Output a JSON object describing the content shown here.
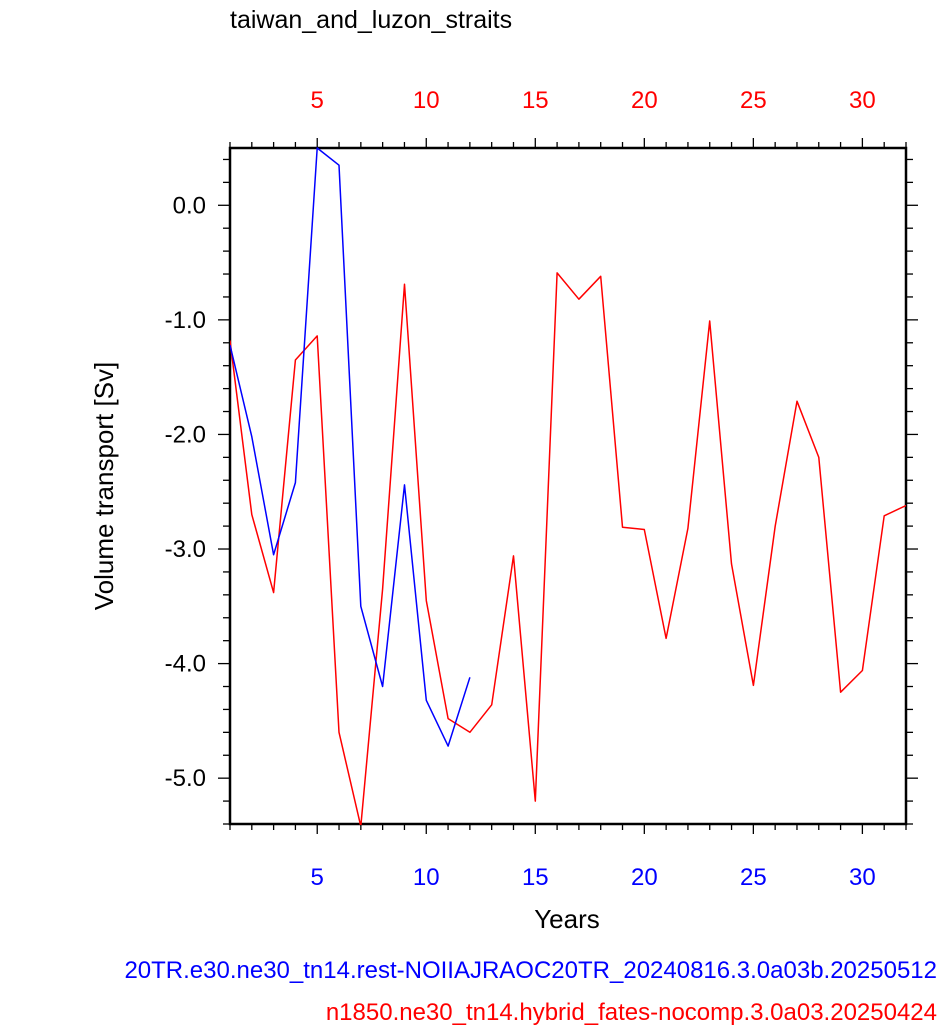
{
  "chart_data": {
    "type": "line",
    "title": "taiwan_and_luzon_straits",
    "xlabel": "Years",
    "ylabel": "Volume transport [Sv]",
    "xlim": [
      1,
      32
    ],
    "ylim": [
      -5.4,
      0.5
    ],
    "x_ticks": [
      5,
      10,
      15,
      20,
      25,
      30
    ],
    "x_tick_labels": [
      "5",
      "10",
      "15",
      "20",
      "25",
      "30"
    ],
    "y_ticks": [
      0.0,
      -1.0,
      -2.0,
      -3.0,
      -4.0,
      -5.0
    ],
    "y_tick_labels": [
      "0.0",
      "-1.0",
      "-2.0",
      "-3.0",
      "-4.0",
      "-5.0"
    ],
    "grid": false,
    "series": [
      {
        "name": "20TR.e30.ne30_tn14.rest-NOIIAJRAOC20TR_20240816.3.0a03b.20250512",
        "color": "#0000ff",
        "x": [
          1,
          2,
          3,
          4,
          5,
          6,
          7,
          8,
          9,
          10,
          11,
          12
        ],
        "values": [
          -1.22,
          -2.02,
          -3.05,
          -2.42,
          0.5,
          0.35,
          -3.5,
          -4.2,
          -2.44,
          -4.32,
          -4.72,
          -4.12
        ]
      },
      {
        "name": "n1850.ne30_tn14.hybrid_fates-nocomp.3.0a03.20250424",
        "color": "#ff0000",
        "x": [
          1,
          2,
          3,
          4,
          5,
          6,
          7,
          8,
          9,
          10,
          11,
          12,
          13,
          14,
          15,
          16,
          17,
          18,
          19,
          20,
          21,
          22,
          23,
          24,
          25,
          26,
          27,
          28,
          29,
          30,
          31,
          32
        ],
        "values": [
          -1.18,
          -2.7,
          -3.38,
          -1.35,
          -1.14,
          -4.6,
          -5.42,
          -3.35,
          -0.69,
          -3.45,
          -4.48,
          -4.6,
          -4.36,
          -3.06,
          -5.2,
          -0.59,
          -0.82,
          -0.62,
          -2.81,
          -2.83,
          -3.78,
          -2.82,
          -1.01,
          -3.13,
          -4.19,
          -2.8,
          -1.71,
          -2.2,
          -4.25,
          -4.06,
          -2.71,
          -2.62
        ]
      }
    ],
    "caption_lines": [
      {
        "text": "20TR.e30.ne30_tn14.rest-NOIIAJRAOC20TR_20240816.3.0a03b.20250512",
        "color": "#0000ff"
      },
      {
        "text": "n1850.ne30_tn14.hybrid_fates-nocomp.3.0a03.20250424",
        "color": "#ff0000"
      }
    ],
    "bottom_axis_color": "#0000ff",
    "top_axis_color": "#ff0000"
  }
}
